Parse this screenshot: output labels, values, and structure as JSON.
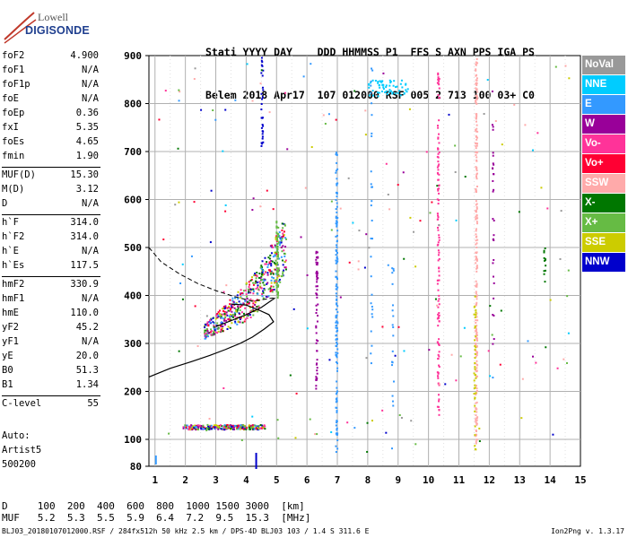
{
  "logo": {
    "line1": "Lowell",
    "line2": "DIGISONDE"
  },
  "header": {
    "row1": [
      "Stati",
      "YYYY",
      "DAY",
      "DDD",
      "HHMMSS",
      "P1",
      "FFS",
      "S",
      "AXN",
      "PPS",
      "IGA",
      "PS"
    ],
    "row2": [
      "Belem",
      "2018",
      "Apr17",
      "107",
      "012000",
      "RSF",
      "005",
      "2",
      "713",
      "100",
      "03+",
      "C0"
    ]
  },
  "params": [
    {
      "label": "foF2",
      "value": "4.900"
    },
    {
      "label": "foF1",
      "value": "N/A"
    },
    {
      "label": "foF1p",
      "value": "N/A"
    },
    {
      "label": "foE",
      "value": "N/A"
    },
    {
      "label": "foEp",
      "value": "0.36"
    },
    {
      "label": "fxI",
      "value": "5.35"
    },
    {
      "label": "foEs",
      "value": "4.65"
    },
    {
      "label": "fmin",
      "value": "1.90"
    },
    {
      "label": "MUF(D)",
      "value": "15.30"
    },
    {
      "label": "M(D)",
      "value": "3.12"
    },
    {
      "label": "D",
      "value": "N/A"
    },
    {
      "label": "h`F",
      "value": "314.0"
    },
    {
      "label": "h`F2",
      "value": "314.0"
    },
    {
      "label": "h`E",
      "value": "N/A"
    },
    {
      "label": "h`Es",
      "value": "117.5"
    },
    {
      "label": "hmF2",
      "value": "330.9"
    },
    {
      "label": "hmF1",
      "value": "N/A"
    },
    {
      "label": "hmE",
      "value": "110.0"
    },
    {
      "label": "yF2",
      "value": "45.2"
    },
    {
      "label": "yF1",
      "value": "N/A"
    },
    {
      "label": "yE",
      "value": "20.0"
    },
    {
      "label": "B0",
      "value": "51.3"
    },
    {
      "label": "B1",
      "value": "1.34"
    },
    {
      "label": "C-level",
      "value": "55"
    }
  ],
  "auto": {
    "line1": "Auto:",
    "line2": "Artist5",
    "line3": "500200"
  },
  "legend": [
    {
      "label": "NoVal",
      "color": "#999999"
    },
    {
      "label": "NNE",
      "color": "#00ccff"
    },
    {
      "label": "E",
      "color": "#3399ff"
    },
    {
      "label": "W",
      "color": "#990099"
    },
    {
      "label": "Vo-",
      "color": "#ff3399"
    },
    {
      "label": "Vo+",
      "color": "#ff0033"
    },
    {
      "label": "SSW",
      "color": "#ffaaaa"
    },
    {
      "label": "X-",
      "color": "#007700"
    },
    {
      "label": "X+",
      "color": "#66bb44"
    },
    {
      "label": "SSE",
      "color": "#cccc00"
    },
    {
      "label": "NNW",
      "color": "#0000cc"
    }
  ],
  "axes": {
    "x_ticks": [
      "1",
      "2",
      "3",
      "4",
      "5",
      "6",
      "7",
      "8",
      "9",
      "10",
      "11",
      "12",
      "13",
      "14",
      "15"
    ],
    "y_ticks": [
      "80",
      "100",
      "200",
      "300",
      "400",
      "500",
      "600",
      "700",
      "800",
      "900"
    ]
  },
  "table": {
    "d_label": "D",
    "d_values": [
      "100",
      "200",
      "400",
      "600",
      "800",
      "1000",
      "1500",
      "3000"
    ],
    "d_unit": "[km]",
    "muf_label": "MUF",
    "muf_values": [
      "5.2",
      "5.3",
      "5.5",
      "5.9",
      "6.4",
      "7.2",
      "9.5",
      "15.3"
    ],
    "muf_unit": "[MHz]"
  },
  "footer": "BLJ03_20180107012000.RSF / 284fx512h 50 kHz 2.5 km / DPS-4D BLJ03 103 / 1.4 S 311.6 E",
  "version": "Ion2Png v. 1.3.17"
}
